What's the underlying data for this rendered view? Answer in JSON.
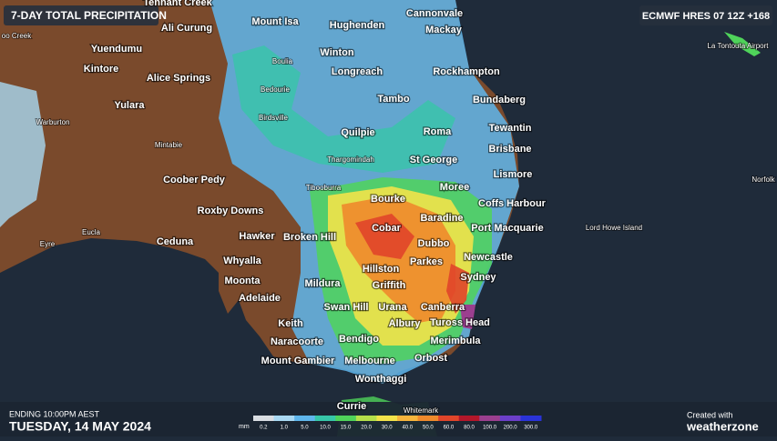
{
  "header": {
    "title": "7-DAY TOTAL PRECIPITATION",
    "model": "ECMWF HRES 07 12Z +168"
  },
  "footer": {
    "ending": "ENDING 10:00PM AEST",
    "date": "TUESDAY, 14 MAY 2024",
    "created_with": "Created with",
    "brand": "weatherzone"
  },
  "legend": {
    "unit": "mm",
    "labels": [
      "0.2",
      "1.0",
      "5.0",
      "10.0",
      "15.0",
      "20.0",
      "30.0",
      "40.0",
      "50.0",
      "60.0",
      "80.0",
      "100.0",
      "200.0",
      "300.0"
    ],
    "colors": [
      "#d9dde2",
      "#a9d8f2",
      "#5fb6ec",
      "#37c6a8",
      "#4fd35a",
      "#b5e04a",
      "#f2e34a",
      "#f6b53c",
      "#ef8a2c",
      "#e0452a",
      "#b3172a",
      "#9b3f8f",
      "#6c3fc9",
      "#2a33d8"
    ]
  },
  "places": [
    "Tennant Creek",
    "oo Creek",
    "Mount Isa",
    "Cannonvale",
    "Ali Curung",
    "Hughenden",
    "Mackay",
    "Yuendumu",
    "Winton",
    "Boulia",
    "Kintore",
    "Alice Springs",
    "Longreach",
    "Rockhampton",
    "Bedourie",
    "Tambo",
    "Bundaberg",
    "Yulara",
    "Warburton",
    "Birdsville",
    "Quilpie",
    "Roma",
    "Tewantin",
    "Mintabie",
    "Brisbane",
    "Thargomindah",
    "St George",
    "Lismore",
    "Coober Pedy",
    "Norfolk",
    "Tibooburra",
    "Bourke",
    "Moree",
    "Coffs Harbour",
    "Roxby Downs",
    "Cobar",
    "Baradine",
    "Port Macquarie",
    "Lord Howe Island",
    "Eucla",
    "Hawker",
    "Broken Hill",
    "Ceduna",
    "Dubbo",
    "Eyre",
    "Whyalla",
    "Newcastle",
    "Parkes",
    "Hillston",
    "Sydney",
    "Moonta",
    "Mildura",
    "Griffith",
    "Adelaide",
    "Swan Hill",
    "Urana",
    "Canberra",
    "Albury",
    "Keith",
    "Tuross Head",
    "Merimbula",
    "Naracoorte",
    "Bendigo",
    "Orbost",
    "Mount Gambier",
    "Melbourne",
    "Wonthaggi",
    "Currie",
    "Whitemark",
    "La Tontouta Airport"
  ]
}
